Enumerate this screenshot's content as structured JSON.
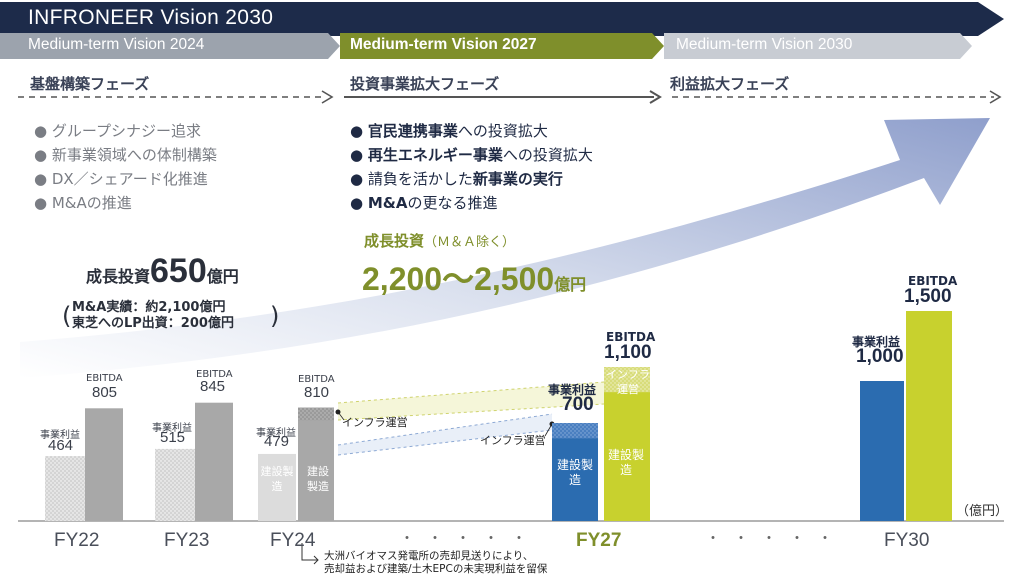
{
  "header": {
    "title": "INFRONEER  Vision  2030",
    "stages": [
      "Medium-term Vision 2024",
      "Medium-term Vision 2027",
      "Medium-term Vision 2030"
    ],
    "colors": {
      "dark": "#1d2b4a",
      "gray": "#9ca3ad",
      "olive": "#7f8f2b",
      "light": "#c8ccd3"
    }
  },
  "phases": [
    "基盤構築フェーズ",
    "投資事業拡大フェーズ",
    "利益拡大フェーズ"
  ],
  "left_bullets": [
    "グループシナジー追求",
    "新事業領域への体制構築",
    "DX／シェアード化推進",
    "M&Aの推進"
  ],
  "mid_bullets": [
    {
      "bold": "官民連携事業",
      "rest": "への投資拡大"
    },
    {
      "bold": "再生エネルギー事業",
      "rest": "への投資拡大"
    },
    {
      "pre": "請負を活かした",
      "bold": "新事業の実行"
    },
    {
      "bold": "M&A",
      "rest": "の更なる推進"
    }
  ],
  "growth_left": {
    "label": "成長投資",
    "value": "650",
    "unit": "億円",
    "note1": "M&A実績：約2,100億円",
    "note2": "東芝へのLP出資：200億円"
  },
  "growth_mid": {
    "label": "成長投資",
    "paren": "（Ｍ＆Ａ除く）",
    "value": "2,200〜2,500",
    "unit": "億円"
  },
  "unit_label": "（億円）",
  "footnote": {
    "line1": "大洲バイオマス発電所の売却見送りにより、",
    "line2": "売却益および建築/土木EPCの未実現利益を留保"
  },
  "labels": {
    "op": "事業利益",
    "ebitda": "EBITDA",
    "infra_op": "インフラ運営",
    "construction": "建設製造",
    "infra_short": "インフラ運営"
  },
  "chart_data": {
    "type": "bar",
    "categories": [
      "FY22",
      "FY23",
      "FY24",
      "FY27",
      "FY30"
    ],
    "series": [
      {
        "name": "事業利益",
        "values": [
          464,
          515,
          479,
          700,
          1000
        ]
      },
      {
        "name": "EBITDA",
        "values": [
          805,
          845,
          810,
          1100,
          1500
        ]
      }
    ],
    "value_labels": {
      "op": [
        "464",
        "515",
        "479",
        "700",
        "1,000"
      ],
      "ebitda": [
        "805",
        "845",
        "810",
        "1,100",
        "1,500"
      ]
    },
    "ylim": [
      0,
      1500
    ],
    "colors": {
      "past_op": "#dcdcdc",
      "past_ebitda": "#a8a8a8",
      "fy27_op": "#2b6cb0",
      "fy27_ebitda": "#c8d12e",
      "fy30_op": "#2b6cb0",
      "fy30_ebitda": "#c8d12e"
    }
  }
}
